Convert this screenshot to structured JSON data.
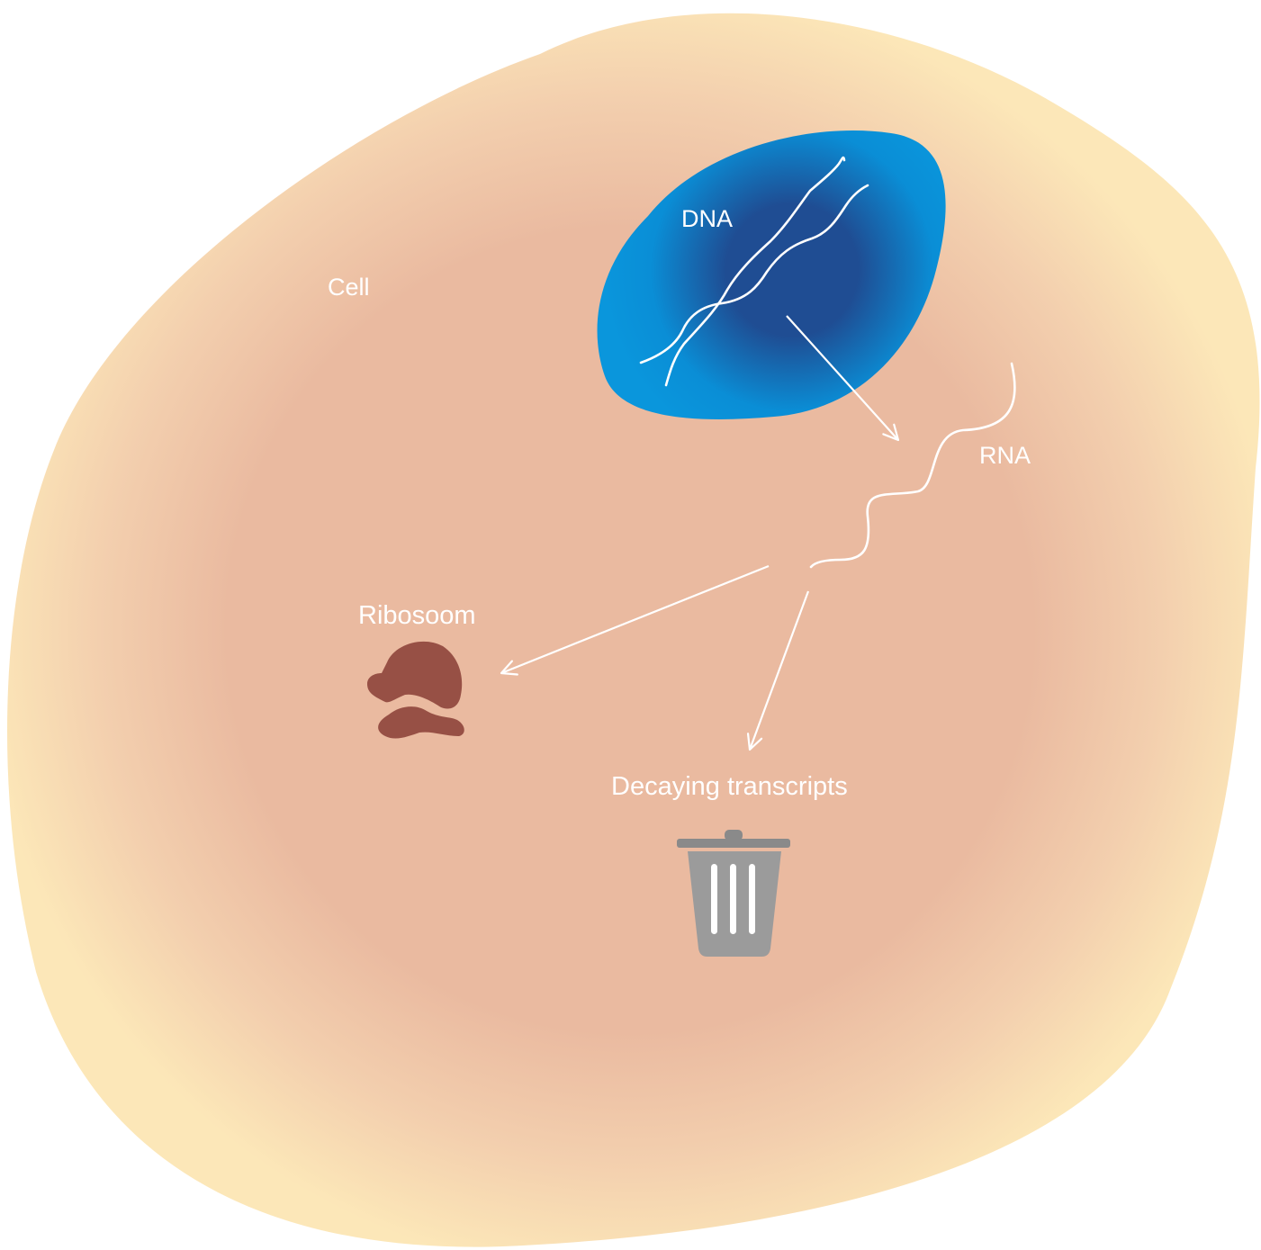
{
  "labels": {
    "cell": "Cell",
    "dna": "DNA",
    "rna": "RNA",
    "ribosome": "Ribosoom",
    "decay": "Decaying transcripts"
  },
  "icons": {
    "dna": "dna-double-helix-icon",
    "rna": "rna-strand-icon",
    "ribosome": "ribosome-icon",
    "decay": "trash-can-icon"
  },
  "colors": {
    "cell_outer": "#fce7b8",
    "cell_inner": "#eabaa0",
    "nucleus_outer": "#0a96dc",
    "nucleus_inner": "#1f4d93",
    "ribosome": "#975045",
    "trash_can": "#9b9b9b",
    "trash_lid": "#8a8a8a",
    "lines": "#ffffff"
  }
}
